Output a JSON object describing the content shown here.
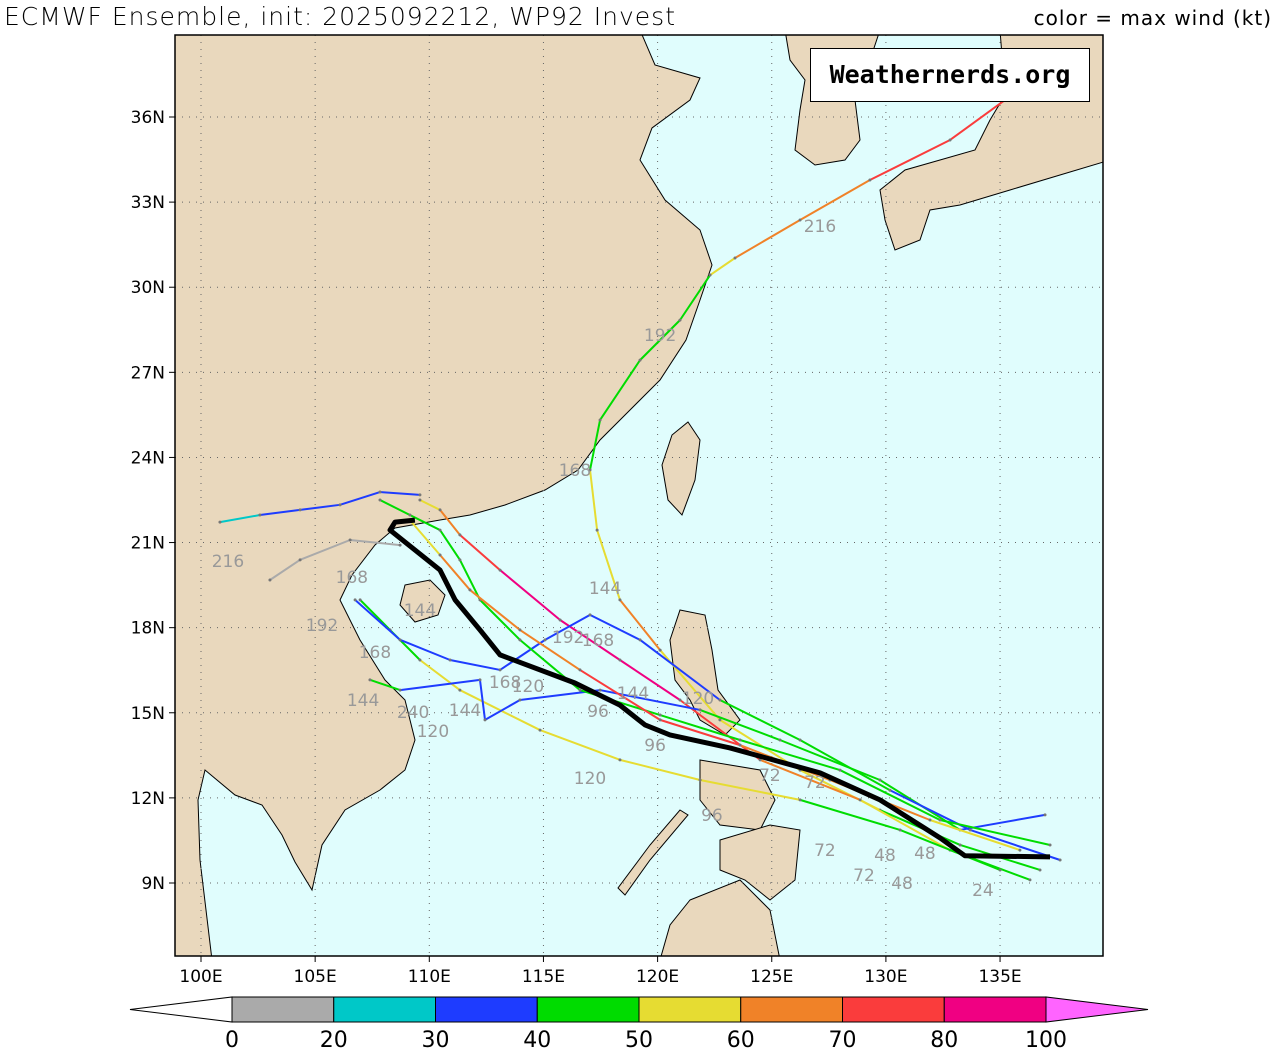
{
  "header": {
    "title": "ECMWF Ensemble, init: 2025092212, WP92 Invest",
    "legend_caption": "color = max wind (kt)"
  },
  "watermark": "Weathernerds.org",
  "map": {
    "lon_range": [
      98.86,
      139.5
    ],
    "lat_range": [
      6.43,
      38.9
    ],
    "ocean_color": "#e0fdfd",
    "land_color": "#e9d8bd",
    "grid": "dotted",
    "lat_ticks": [
      {
        "v": 9,
        "label": "9N"
      },
      {
        "v": 12,
        "label": "12N"
      },
      {
        "v": 15,
        "label": "15N"
      },
      {
        "v": 18,
        "label": "18N"
      },
      {
        "v": 21,
        "label": "21N"
      },
      {
        "v": 24,
        "label": "24N"
      },
      {
        "v": 27,
        "label": "27N"
      },
      {
        "v": 30,
        "label": "30N"
      },
      {
        "v": 33,
        "label": "33N"
      },
      {
        "v": 36,
        "label": "36N"
      }
    ],
    "lon_ticks": [
      {
        "v": 100,
        "label": "100E"
      },
      {
        "v": 105,
        "label": "105E"
      },
      {
        "v": 110,
        "label": "110E"
      },
      {
        "v": 115,
        "label": "115E"
      },
      {
        "v": 120,
        "label": "120E"
      },
      {
        "v": 125,
        "label": "125E"
      },
      {
        "v": 130,
        "label": "130E"
      },
      {
        "v": 135,
        "label": "135E"
      }
    ],
    "mean_track": [
      [
        137.19,
        9.92
      ],
      [
        133.46,
        9.96
      ],
      [
        132.37,
        10.59
      ],
      [
        129.74,
        11.93
      ],
      [
        127.12,
        12.88
      ],
      [
        123.17,
        13.76
      ],
      [
        120.54,
        14.22
      ],
      [
        119.45,
        14.57
      ],
      [
        118.35,
        15.27
      ],
      [
        116.38,
        16.05
      ],
      [
        113.1,
        17.04
      ],
      [
        112.22,
        17.92
      ],
      [
        111.13,
        18.98
      ],
      [
        110.47,
        20.03
      ],
      [
        108.28,
        21.44
      ],
      [
        108.5,
        21.72
      ],
      [
        109.37,
        21.79
      ]
    ],
    "tracks": [
      {
        "points": [
          [
            136.75,
            9.46
          ],
          [
            133.25,
            10.34
          ],
          [
            129.74,
            11.57
          ],
          [
            126.24,
            12.98
          ],
          [
            122.73,
            14.75
          ],
          [
            120.11,
            17.21
          ],
          [
            118.35,
            18.98
          ],
          [
            117.35,
            21.44
          ],
          [
            117.04,
            23.56
          ],
          [
            117.48,
            25.32
          ],
          [
            119.23,
            27.43
          ],
          [
            120.98,
            28.84
          ],
          [
            122.3,
            30.43
          ],
          [
            123.39,
            31.03
          ],
          [
            126.24,
            32.37
          ],
          [
            129.3,
            33.78
          ],
          [
            132.81,
            35.19
          ],
          [
            135.22,
            36.6
          ]
        ],
        "winds": [
          40,
          40,
          50,
          50,
          50,
          60,
          50,
          50,
          40,
          40,
          40,
          40,
          50,
          60,
          60,
          70,
          70
        ]
      },
      {
        "points": [
          [
            136.31,
            9.11
          ],
          [
            132.81,
            10.16
          ],
          [
            128.87,
            11.93
          ],
          [
            124.49,
            13.34
          ],
          [
            120.98,
            15.45
          ],
          [
            118.35,
            16.86
          ],
          [
            115.73,
            18.27
          ],
          [
            113.1,
            20.03
          ],
          [
            111.34,
            21.27
          ],
          [
            110.47,
            22.15
          ],
          [
            109.59,
            22.5
          ]
        ],
        "winds": [
          40,
          50,
          60,
          70,
          80,
          80,
          80,
          70,
          60,
          50
        ]
      },
      {
        "points": [
          [
            135.0,
            9.46
          ],
          [
            130.62,
            10.87
          ],
          [
            126.24,
            11.93
          ],
          [
            121.86,
            12.63
          ],
          [
            118.35,
            13.34
          ],
          [
            114.85,
            14.39
          ],
          [
            111.34,
            15.8
          ],
          [
            109.59,
            16.86
          ],
          [
            108.28,
            17.92
          ],
          [
            106.97,
            18.98
          ]
        ],
        "winds": [
          40,
          40,
          50,
          50,
          50,
          50,
          50,
          40,
          40
        ]
      },
      {
        "points": [
          [
            136.97,
            11.4
          ],
          [
            133.25,
            10.87
          ],
          [
            129.74,
            12.63
          ],
          [
            125.36,
            14.04
          ],
          [
            121.86,
            15.1
          ],
          [
            117.48,
            15.8
          ],
          [
            113.97,
            15.45
          ],
          [
            112.44,
            14.75
          ],
          [
            112.22,
            16.16
          ],
          [
            108.72,
            15.8
          ],
          [
            107.4,
            16.16
          ]
        ],
        "winds": [
          30,
          40,
          40,
          40,
          30,
          30,
          30,
          30,
          30,
          40
        ]
      },
      {
        "points": [
          [
            137.63,
            9.81
          ],
          [
            133.69,
            10.87
          ],
          [
            130.18,
            12.27
          ],
          [
            126.24,
            14.04
          ],
          [
            122.73,
            15.45
          ],
          [
            119.23,
            17.57
          ],
          [
            117.04,
            18.45
          ],
          [
            115.07,
            17.57
          ],
          [
            113.1,
            16.51
          ],
          [
            110.91,
            16.86
          ],
          [
            108.72,
            17.57
          ],
          [
            106.75,
            18.98
          ]
        ],
        "winds": [
          30,
          30,
          40,
          40,
          30,
          30,
          30,
          30,
          30,
          30,
          30
        ]
      },
      {
        "points": [
          [
            137.19,
            10.34
          ],
          [
            132.37,
            11.22
          ],
          [
            127.99,
            12.98
          ],
          [
            123.61,
            14.04
          ],
          [
            120.11,
            14.92
          ],
          [
            116.6,
            15.8
          ],
          [
            113.97,
            17.57
          ],
          [
            112.22,
            18.98
          ],
          [
            111.34,
            20.39
          ],
          [
            110.47,
            21.44
          ],
          [
            109.15,
            21.97
          ],
          [
            107.84,
            22.5
          ]
        ],
        "winds": [
          40,
          40,
          40,
          40,
          40,
          40,
          40,
          40,
          40,
          40,
          40
        ]
      },
      {
        "points": [
          [
            135.87,
            10.16
          ],
          [
            131.93,
            11.22
          ],
          [
            127.55,
            12.63
          ],
          [
            123.61,
            13.86
          ],
          [
            120.11,
            14.75
          ],
          [
            116.6,
            16.51
          ],
          [
            113.97,
            17.92
          ],
          [
            111.78,
            19.33
          ],
          [
            110.47,
            20.56
          ],
          [
            109.15,
            21.79
          ]
        ],
        "winds": [
          50,
          60,
          60,
          70,
          70,
          60,
          60,
          60,
          50
        ]
      },
      {
        "points": [
          [
            109.59,
            22.68
          ],
          [
            107.84,
            22.78
          ],
          [
            106.09,
            22.33
          ],
          [
            104.34,
            22.15
          ],
          [
            102.58,
            21.97
          ],
          [
            100.83,
            21.72
          ]
        ],
        "winds": [
          30,
          30,
          30,
          30,
          20
        ]
      },
      {
        "points": [
          [
            108.72,
            20.91
          ],
          [
            106.53,
            21.09
          ],
          [
            104.34,
            20.39
          ],
          [
            103.02,
            19.68
          ]
        ],
        "winds": [
          10,
          10,
          10
        ]
      }
    ],
    "hour_labels": [
      [
        127.11,
        32.16,
        "216"
      ],
      [
        120.11,
        28.32,
        "192"
      ],
      [
        116.38,
        23.56,
        "168"
      ],
      [
        117.7,
        19.4,
        "144"
      ],
      [
        101.18,
        20.35,
        "216"
      ],
      [
        106.61,
        19.79,
        "168"
      ],
      [
        109.59,
        18.62,
        "144"
      ],
      [
        105.3,
        18.09,
        "192"
      ],
      [
        107.62,
        17.14,
        "168"
      ],
      [
        116.08,
        17.67,
        "192"
      ],
      [
        117.39,
        17.57,
        "168"
      ],
      [
        107.1,
        15.45,
        "144"
      ],
      [
        109.29,
        15.03,
        "240"
      ],
      [
        111.56,
        15.1,
        "144"
      ],
      [
        110.16,
        14.36,
        "120"
      ],
      [
        113.32,
        16.08,
        "168"
      ],
      [
        114.32,
        15.94,
        "120"
      ],
      [
        117.39,
        15.06,
        "96"
      ],
      [
        118.92,
        15.7,
        "144"
      ],
      [
        121.77,
        15.52,
        "120"
      ],
      [
        119.89,
        13.86,
        "96"
      ],
      [
        117.04,
        12.7,
        "120"
      ],
      [
        124.92,
        12.81,
        "72"
      ],
      [
        126.89,
        12.56,
        "72"
      ],
      [
        122.38,
        11.4,
        "96"
      ],
      [
        127.33,
        10.16,
        "72"
      ],
      [
        129.96,
        9.99,
        "48"
      ],
      [
        131.71,
        10.06,
        "48"
      ],
      [
        129.04,
        9.28,
        "72"
      ],
      [
        130.71,
        9.0,
        "48"
      ],
      [
        134.25,
        8.75,
        "24"
      ]
    ]
  },
  "colorbar": {
    "bins": [
      {
        "from": 0,
        "to": 20,
        "color": "#aaaaaa"
      },
      {
        "from": 20,
        "to": 30,
        "color": "#00c8c8"
      },
      {
        "from": 30,
        "to": 40,
        "color": "#1e3cff"
      },
      {
        "from": 40,
        "to": 50,
        "color": "#00dc00"
      },
      {
        "from": 50,
        "to": 60,
        "color": "#e6dc32"
      },
      {
        "from": 60,
        "to": 70,
        "color": "#f08228"
      },
      {
        "from": 70,
        "to": 80,
        "color": "#fa3c3c"
      },
      {
        "from": 80,
        "to": 100,
        "color": "#f00082"
      }
    ],
    "under_color": "#ffffff",
    "over_color": "#ff64ff",
    "labels": [
      "0",
      "20",
      "30",
      "40",
      "50",
      "60",
      "70",
      "80",
      "100"
    ]
  }
}
